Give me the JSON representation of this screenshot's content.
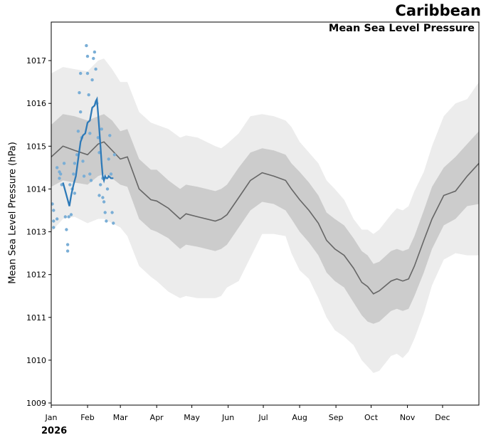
{
  "colors": {
    "outer_band": "#ececec",
    "inner_band": "#cccccc",
    "mean_line": "#666666",
    "obs_line": "#2e7ab8",
    "obs_points": "#7aaed6"
  },
  "chart_data": {
    "type": "line",
    "title": "Caribbean",
    "subtitle": "Mean Sea Level Pressure",
    "ylabel": "Mean Sea Level Pressure (hPa)",
    "xlabel": "",
    "year_label": "2026",
    "xlim": [
      0,
      365
    ],
    "ylim": [
      1008.95,
      1017.9
    ],
    "y_ticks": [
      1009,
      1010,
      1011,
      1012,
      1013,
      1014,
      1015,
      1016,
      1017
    ],
    "x_ticks": [
      {
        "day": 0,
        "label": "Jan"
      },
      {
        "day": 31,
        "label": "Feb"
      },
      {
        "day": 59,
        "label": "Mar"
      },
      {
        "day": 90,
        "label": "Apr"
      },
      {
        "day": 120,
        "label": "May"
      },
      {
        "day": 151,
        "label": "Jun"
      },
      {
        "day": 181,
        "label": "Jul"
      },
      {
        "day": 212,
        "label": "Aug"
      },
      {
        "day": 243,
        "label": "Sep"
      },
      {
        "day": 273,
        "label": "Oct"
      },
      {
        "day": 304,
        "label": "Nov"
      },
      {
        "day": 334,
        "label": "Dec"
      }
    ],
    "climatology": {
      "day": [
        0,
        10,
        20,
        31,
        40,
        45,
        52,
        59,
        65,
        75,
        85,
        90,
        100,
        110,
        115,
        125,
        140,
        145,
        150,
        160,
        170,
        180,
        190,
        200,
        205,
        212,
        220,
        228,
        235,
        242,
        250,
        258,
        265,
        270,
        275,
        280,
        290,
        295,
        300,
        305,
        310,
        318,
        325,
        335,
        345,
        355,
        365
      ],
      "mean": [
        1014.75,
        1015.0,
        1014.9,
        1014.8,
        1015.05,
        1015.1,
        1014.9,
        1014.7,
        1014.75,
        1014.0,
        1013.75,
        1013.72,
        1013.55,
        1013.3,
        1013.42,
        1013.35,
        1013.25,
        1013.3,
        1013.4,
        1013.8,
        1014.2,
        1014.38,
        1014.3,
        1014.2,
        1014.0,
        1013.75,
        1013.5,
        1013.2,
        1012.8,
        1012.6,
        1012.45,
        1012.15,
        1011.82,
        1011.72,
        1011.55,
        1011.62,
        1011.85,
        1011.9,
        1011.85,
        1011.9,
        1012.2,
        1012.8,
        1013.3,
        1013.85,
        1013.95,
        1014.3,
        1014.6
      ],
      "inner_low": [
        1014.05,
        1014.2,
        1014.15,
        1014.1,
        1014.3,
        1014.35,
        1014.25,
        1014.1,
        1014.05,
        1013.3,
        1013.05,
        1013.0,
        1012.85,
        1012.6,
        1012.7,
        1012.65,
        1012.55,
        1012.6,
        1012.7,
        1013.1,
        1013.5,
        1013.7,
        1013.65,
        1013.5,
        1013.3,
        1013.0,
        1012.75,
        1012.45,
        1012.05,
        1011.85,
        1011.7,
        1011.35,
        1011.05,
        1010.9,
        1010.85,
        1010.9,
        1011.15,
        1011.2,
        1011.15,
        1011.2,
        1011.5,
        1012.05,
        1012.6,
        1013.15,
        1013.3,
        1013.6,
        1013.65
      ],
      "inner_high": [
        1015.5,
        1015.75,
        1015.7,
        1015.6,
        1015.7,
        1015.75,
        1015.6,
        1015.35,
        1015.4,
        1014.7,
        1014.45,
        1014.45,
        1014.2,
        1014.0,
        1014.1,
        1014.05,
        1013.95,
        1014.0,
        1014.1,
        1014.5,
        1014.85,
        1014.95,
        1014.9,
        1014.8,
        1014.6,
        1014.4,
        1014.15,
        1013.85,
        1013.45,
        1013.3,
        1013.15,
        1012.85,
        1012.55,
        1012.45,
        1012.25,
        1012.3,
        1012.55,
        1012.6,
        1012.55,
        1012.6,
        1012.9,
        1013.5,
        1014.05,
        1014.5,
        1014.75,
        1015.05,
        1015.35
      ],
      "outer_low": [
        1013.0,
        1013.3,
        1013.35,
        1013.2,
        1013.3,
        1013.3,
        1013.2,
        1013.1,
        1012.9,
        1012.2,
        1011.95,
        1011.85,
        1011.6,
        1011.45,
        1011.5,
        1011.45,
        1011.45,
        1011.5,
        1011.7,
        1011.85,
        1012.4,
        1012.95,
        1012.95,
        1012.9,
        1012.5,
        1012.1,
        1011.9,
        1011.45,
        1011.0,
        1010.7,
        1010.55,
        1010.35,
        1010.0,
        1009.85,
        1009.7,
        1009.75,
        1010.1,
        1010.15,
        1010.05,
        1010.2,
        1010.5,
        1011.1,
        1011.75,
        1012.35,
        1012.5,
        1012.45,
        1012.45
      ],
      "outer_high": [
        1016.7,
        1016.85,
        1016.8,
        1016.75,
        1017.0,
        1017.05,
        1016.8,
        1016.5,
        1016.5,
        1015.8,
        1015.55,
        1015.5,
        1015.4,
        1015.2,
        1015.25,
        1015.2,
        1015.0,
        1014.95,
        1015.05,
        1015.3,
        1015.7,
        1015.75,
        1015.7,
        1015.6,
        1015.45,
        1015.1,
        1014.85,
        1014.6,
        1014.2,
        1014.0,
        1013.75,
        1013.3,
        1013.05,
        1013.05,
        1012.95,
        1013.05,
        1013.4,
        1013.55,
        1013.5,
        1013.6,
        1013.95,
        1014.4,
        1015.0,
        1015.7,
        1016.0,
        1016.1,
        1016.5
      ]
    },
    "observed_mean": {
      "day": [
        10,
        12,
        14,
        15.5,
        17,
        19,
        21,
        23,
        25,
        27,
        29,
        31,
        33,
        35,
        37,
        38,
        39,
        40,
        41,
        42,
        43,
        44,
        45,
        46,
        47,
        48,
        49,
        51,
        53
      ],
      "value": [
        1014.15,
        1013.95,
        1013.75,
        1013.6,
        1013.85,
        1014.1,
        1014.3,
        1014.7,
        1015.1,
        1015.25,
        1015.3,
        1015.55,
        1015.6,
        1015.9,
        1015.95,
        1016.05,
        1016.1,
        1015.75,
        1015.4,
        1015.0,
        1014.6,
        1014.3,
        1014.2,
        1014.3,
        1014.25,
        1014.25,
        1014.3,
        1014.25,
        1014.25
      ]
    },
    "observed_points": [
      {
        "day": 1,
        "v": 1013.65
      },
      {
        "day": 2,
        "v": 1013.5
      },
      {
        "day": 2,
        "v": 1013.25
      },
      {
        "day": 2,
        "v": 1013.1
      },
      {
        "day": 5,
        "v": 1014.5
      },
      {
        "day": 5,
        "v": 1013.3
      },
      {
        "day": 7,
        "v": 1014.4
      },
      {
        "day": 7,
        "v": 1014.25
      },
      {
        "day": 8,
        "v": 1014.35
      },
      {
        "day": 9,
        "v": 1014.1
      },
      {
        "day": 11,
        "v": 1014.6
      },
      {
        "day": 12,
        "v": 1013.35
      },
      {
        "day": 13,
        "v": 1013.05
      },
      {
        "day": 14,
        "v": 1012.7
      },
      {
        "day": 14,
        "v": 1012.55
      },
      {
        "day": 15,
        "v": 1013.35
      },
      {
        "day": 16,
        "v": 1014.1
      },
      {
        "day": 17,
        "v": 1013.4
      },
      {
        "day": 18,
        "v": 1014.0
      },
      {
        "day": 19,
        "v": 1014.35
      },
      {
        "day": 20,
        "v": 1014.6
      },
      {
        "day": 20,
        "v": 1013.9
      },
      {
        "day": 22,
        "v": 1014.8
      },
      {
        "day": 23,
        "v": 1015.35
      },
      {
        "day": 24,
        "v": 1016.25
      },
      {
        "day": 25,
        "v": 1016.7
      },
      {
        "day": 25,
        "v": 1015.8
      },
      {
        "day": 26,
        "v": 1015.2
      },
      {
        "day": 27,
        "v": 1014.65
      },
      {
        "day": 28,
        "v": 1014.3
      },
      {
        "day": 30,
        "v": 1017.35
      },
      {
        "day": 31,
        "v": 1017.1
      },
      {
        "day": 31,
        "v": 1016.7
      },
      {
        "day": 32,
        "v": 1016.2
      },
      {
        "day": 33,
        "v": 1015.3
      },
      {
        "day": 33,
        "v": 1014.35
      },
      {
        "day": 34,
        "v": 1014.2
      },
      {
        "day": 35,
        "v": 1016.55
      },
      {
        "day": 36,
        "v": 1017.05
      },
      {
        "day": 37,
        "v": 1017.2
      },
      {
        "day": 38,
        "v": 1016.8
      },
      {
        "day": 39,
        "v": 1016.0
      },
      {
        "day": 40,
        "v": 1015.2
      },
      {
        "day": 41,
        "v": 1014.85
      },
      {
        "day": 41,
        "v": 1013.85
      },
      {
        "day": 42,
        "v": 1014.1
      },
      {
        "day": 43,
        "v": 1015.4
      },
      {
        "day": 44,
        "v": 1014.25
      },
      {
        "day": 44,
        "v": 1013.8
      },
      {
        "day": 45,
        "v": 1013.7
      },
      {
        "day": 46,
        "v": 1013.45
      },
      {
        "day": 47,
        "v": 1013.25
      },
      {
        "day": 48,
        "v": 1014.0
      },
      {
        "day": 49,
        "v": 1014.7
      },
      {
        "day": 50,
        "v": 1015.25
      },
      {
        "day": 51,
        "v": 1014.35
      },
      {
        "day": 52,
        "v": 1013.45
      },
      {
        "day": 53,
        "v": 1013.2
      },
      {
        "day": 54,
        "v": 1014.8
      }
    ]
  }
}
